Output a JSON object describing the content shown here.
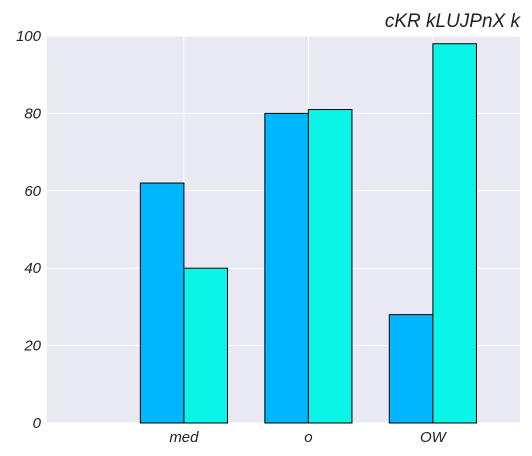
{
  "chart_data": {
    "type": "bar",
    "title": "cKR kLUJPnX k",
    "xlabel": "",
    "ylabel": "",
    "categories": [
      "med",
      "o",
      "OW"
    ],
    "series": [
      {
        "values": [
          62,
          80,
          28
        ],
        "color": "#00b7ff"
      },
      {
        "values": [
          40,
          81,
          98
        ],
        "color": "#0af5e8"
      }
    ],
    "ylim": [
      0,
      100
    ],
    "yticks": [
      0,
      20,
      40,
      60,
      80,
      100
    ],
    "grid": true,
    "background": "#e8e9f2",
    "legend": "none"
  }
}
